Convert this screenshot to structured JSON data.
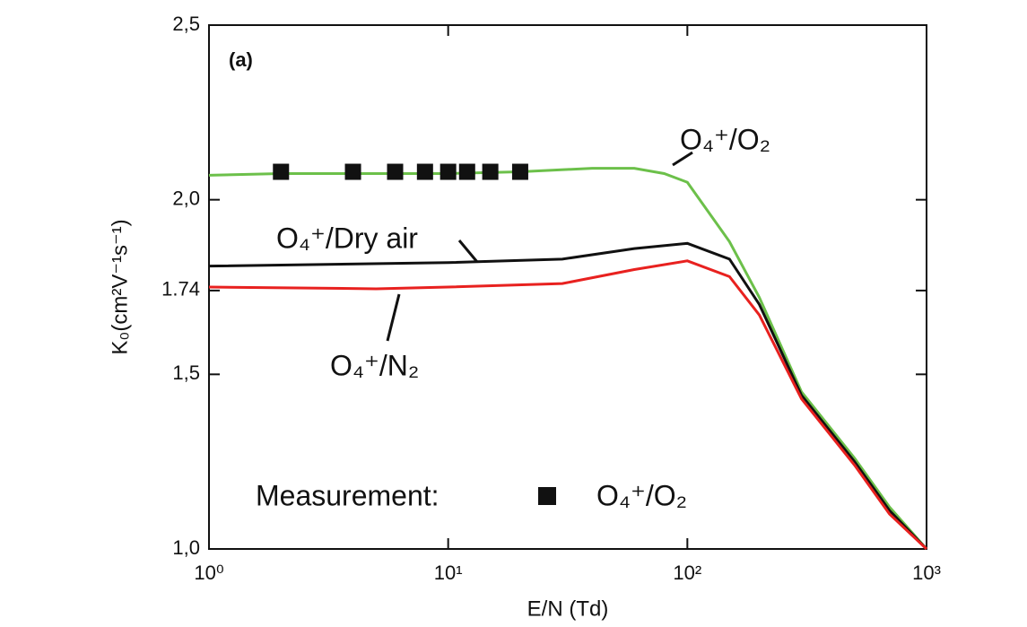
{
  "chart_data": {
    "type": "line",
    "annotation": "(a)",
    "x_label": "E/N (Td)",
    "y_label": "K₀(cm²V⁻¹s⁻¹)",
    "xscale": "log",
    "xlim": [
      1,
      1000
    ],
    "xticks": [
      {
        "value": 1,
        "label": "10⁰"
      },
      {
        "value": 10,
        "label": "10¹"
      },
      {
        "value": 100,
        "label": "10²"
      },
      {
        "value": 1000,
        "label": "10³"
      }
    ],
    "ylim": [
      1.0,
      2.5
    ],
    "yticks": [
      {
        "value": 1.0,
        "label": "1,0"
      },
      {
        "value": 1.5,
        "label": "1,5"
      },
      1.74,
      {
        "value": 2.0,
        "label": "2,0"
      },
      {
        "value": 2.5,
        "label": "2,5"
      }
    ],
    "legend_title": "Measurement:",
    "series": [
      {
        "name": "O₄⁺/O₂",
        "color": "#6cc04a",
        "mode": "line",
        "x": [
          1,
          2,
          5,
          10,
          20,
          40,
          60,
          80,
          100,
          150,
          200,
          300,
          500,
          700,
          1000
        ],
        "values": [
          2.07,
          2.075,
          2.075,
          2.075,
          2.08,
          2.09,
          2.09,
          2.075,
          2.05,
          1.88,
          1.72,
          1.45,
          1.26,
          1.12,
          1.0
        ]
      },
      {
        "name": "O₄⁺/Dry air",
        "color": "#111111",
        "mode": "line",
        "x": [
          1,
          10,
          30,
          60,
          100,
          150,
          200,
          300,
          500,
          700,
          1000
        ],
        "values": [
          1.81,
          1.82,
          1.83,
          1.86,
          1.875,
          1.83,
          1.7,
          1.44,
          1.25,
          1.11,
          1.0
        ]
      },
      {
        "name": "O₄⁺/N₂",
        "color": "#e8211f",
        "mode": "line",
        "x": [
          1,
          5,
          10,
          30,
          60,
          100,
          150,
          200,
          300,
          500,
          700,
          1000
        ],
        "values": [
          1.75,
          1.745,
          1.75,
          1.76,
          1.8,
          1.825,
          1.78,
          1.67,
          1.43,
          1.24,
          1.1,
          1.0
        ]
      },
      {
        "name": "O₄⁺/O₂",
        "color": "#111111",
        "mode": "markers",
        "marker": "square",
        "x": [
          2,
          4,
          6,
          8,
          10,
          12,
          15,
          20
        ],
        "values": [
          2.08,
          2.08,
          2.08,
          2.08,
          2.08,
          2.08,
          2.08,
          2.08
        ]
      }
    ]
  }
}
